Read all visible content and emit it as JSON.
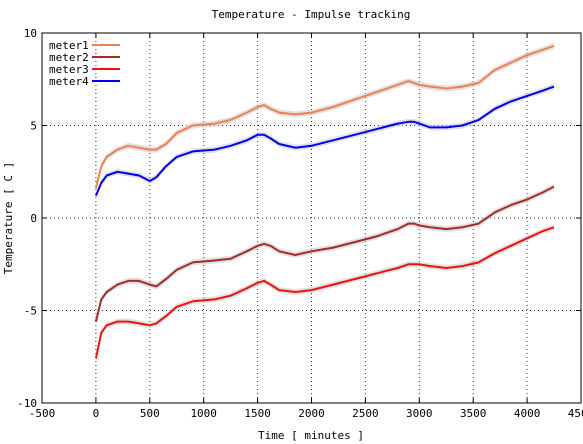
{
  "chart_data": {
    "type": "line",
    "title": "Temperature - Impulse tracking",
    "xlabel": "Time [ minutes ]",
    "ylabel": "Temperature [ C ]",
    "xlim": [
      -500,
      4500
    ],
    "ylim": [
      -10,
      10
    ],
    "xticks": [
      -500,
      0,
      500,
      1000,
      1500,
      2000,
      2500,
      3000,
      3500,
      4000,
      4500
    ],
    "yticks": [
      -10,
      -5,
      0,
      5,
      10
    ],
    "grid": true,
    "legend_position": "top-left",
    "series": [
      {
        "name": "meter1",
        "color": "#f08050",
        "x": [
          0,
          50,
          100,
          200,
          300,
          400,
          500,
          560,
          650,
          750,
          900,
          1100,
          1250,
          1400,
          1500,
          1560,
          1620,
          1700,
          1850,
          2000,
          2200,
          2400,
          2600,
          2800,
          2900,
          2950,
          3000,
          3100,
          3250,
          3400,
          3550,
          3700,
          3850,
          4000,
          4150,
          4250
        ],
        "y": [
          1.6,
          2.8,
          3.3,
          3.7,
          3.9,
          3.8,
          3.7,
          3.7,
          4.0,
          4.6,
          5.0,
          5.1,
          5.3,
          5.7,
          6.0,
          6.1,
          5.9,
          5.7,
          5.6,
          5.7,
          6.0,
          6.4,
          6.8,
          7.2,
          7.4,
          7.3,
          7.2,
          7.1,
          7.0,
          7.1,
          7.3,
          8.0,
          8.4,
          8.8,
          9.1,
          9.3
        ]
      },
      {
        "name": "meter2",
        "color": "#a52a2a",
        "x": [
          0,
          50,
          100,
          200,
          300,
          400,
          500,
          560,
          650,
          750,
          900,
          1100,
          1250,
          1400,
          1500,
          1560,
          1620,
          1700,
          1850,
          2000,
          2200,
          2400,
          2600,
          2800,
          2900,
          2950,
          3000,
          3100,
          3250,
          3400,
          3550,
          3700,
          3850,
          4000,
          4150,
          4250
        ],
        "y": [
          -5.6,
          -4.4,
          -4.0,
          -3.6,
          -3.4,
          -3.4,
          -3.6,
          -3.7,
          -3.3,
          -2.8,
          -2.4,
          -2.3,
          -2.2,
          -1.8,
          -1.5,
          -1.4,
          -1.5,
          -1.8,
          -2.0,
          -1.8,
          -1.6,
          -1.3,
          -1.0,
          -0.6,
          -0.3,
          -0.3,
          -0.4,
          -0.5,
          -0.6,
          -0.5,
          -0.3,
          0.3,
          0.7,
          1.0,
          1.4,
          1.7
        ]
      },
      {
        "name": "meter3",
        "color": "#ee1111",
        "x": [
          0,
          50,
          100,
          200,
          300,
          400,
          500,
          560,
          650,
          750,
          900,
          1100,
          1250,
          1400,
          1500,
          1560,
          1620,
          1700,
          1850,
          2000,
          2200,
          2400,
          2600,
          2800,
          2900,
          2950,
          3000,
          3100,
          3250,
          3400,
          3550,
          3700,
          3850,
          4000,
          4150,
          4250
        ],
        "y": [
          -7.6,
          -6.2,
          -5.8,
          -5.6,
          -5.6,
          -5.7,
          -5.8,
          -5.7,
          -5.3,
          -4.8,
          -4.5,
          -4.4,
          -4.2,
          -3.8,
          -3.5,
          -3.4,
          -3.6,
          -3.9,
          -4.0,
          -3.9,
          -3.6,
          -3.3,
          -3.0,
          -2.7,
          -2.5,
          -2.5,
          -2.5,
          -2.6,
          -2.7,
          -2.6,
          -2.4,
          -1.9,
          -1.5,
          -1.1,
          -0.7,
          -0.5
        ]
      },
      {
        "name": "meter4",
        "color": "#0000ee",
        "x": [
          0,
          50,
          100,
          200,
          300,
          400,
          500,
          560,
          650,
          750,
          900,
          1100,
          1250,
          1400,
          1500,
          1560,
          1620,
          1700,
          1850,
          2000,
          2200,
          2400,
          2600,
          2800,
          2900,
          2950,
          3000,
          3100,
          3250,
          3400,
          3550,
          3700,
          3850,
          4000,
          4150,
          4250
        ],
        "y": [
          1.2,
          1.9,
          2.3,
          2.5,
          2.4,
          2.3,
          2.0,
          2.2,
          2.8,
          3.3,
          3.6,
          3.7,
          3.9,
          4.2,
          4.5,
          4.5,
          4.3,
          4.0,
          3.8,
          3.9,
          4.2,
          4.5,
          4.8,
          5.1,
          5.2,
          5.2,
          5.1,
          4.9,
          4.9,
          5.0,
          5.3,
          5.9,
          6.3,
          6.6,
          6.9,
          7.1
        ]
      }
    ]
  }
}
